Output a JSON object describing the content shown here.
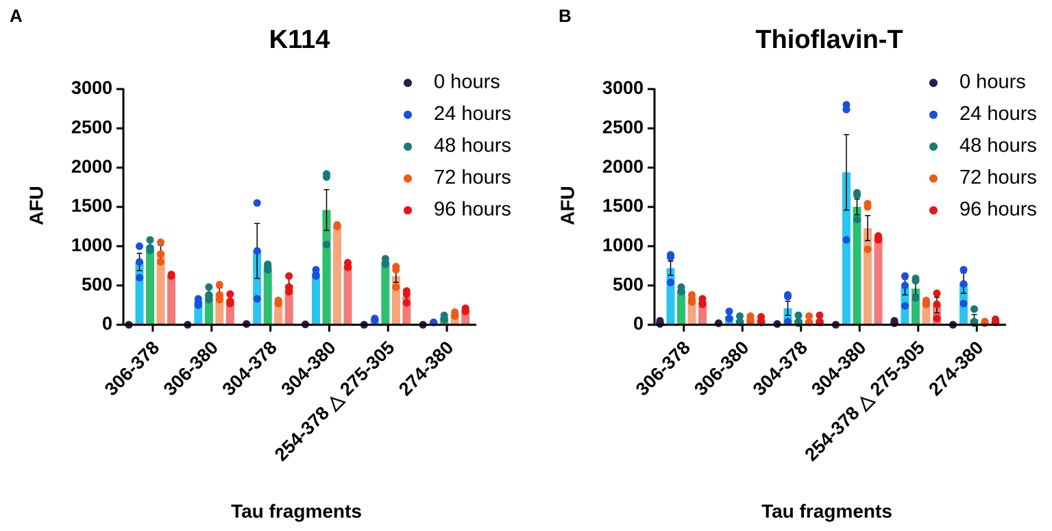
{
  "chart_data": [
    {
      "type": "bar",
      "panel_label": "A",
      "title": "K114",
      "xlabel": "Tau  fragments",
      "ylabel": "AFU",
      "categories": [
        "306-378",
        "306-380",
        "304-378",
        "304-380",
        "254-378 △ 275-305",
        "274-380"
      ],
      "ylim": [
        0,
        3000
      ],
      "yticks": [
        0,
        500,
        1000,
        1500,
        2000,
        2500,
        3000
      ],
      "series": [
        {
          "name": "0 hours",
          "color": "#2d1a4f",
          "bar_color": "#2d1a4f",
          "values": [
            0,
            0,
            10,
            5,
            0,
            0
          ],
          "errors": [
            0,
            0,
            0,
            0,
            0,
            0
          ],
          "points": [
            [
              0,
              0,
              0
            ],
            [
              0,
              0,
              0
            ],
            [
              10,
              10,
              10
            ],
            [
              5,
              5,
              5
            ],
            [
              0,
              0,
              0
            ],
            [
              0,
              0,
              0
            ]
          ]
        },
        {
          "name": "24 hours",
          "color": "#1a4fe0",
          "bar_color": "#29c5f0",
          "values": [
            800,
            290,
            940,
            650,
            70,
            30
          ],
          "errors": [
            110,
            40,
            350,
            30,
            10,
            5
          ],
          "points": [
            [
              1000,
              600,
              800
            ],
            [
              330,
              250,
              290
            ],
            [
              1550,
              330,
              940
            ],
            [
              700,
              620,
              640
            ],
            [
              80,
              70,
              60
            ],
            [
              30,
              30,
              30
            ]
          ]
        },
        {
          "name": "48 hours",
          "color": "#1a7a7a",
          "bar_color": "#2bbf6f",
          "values": [
            1000,
            390,
            740,
            1460,
            800,
            90
          ],
          "errors": [
            70,
            60,
            30,
            260,
            40,
            20
          ],
          "points": [
            [
              1080,
              980,
              950
            ],
            [
              480,
              320,
              380
            ],
            [
              770,
              700,
              750
            ],
            [
              1920,
              1880,
              1020
            ],
            [
              840,
              770,
              790
            ],
            [
              120,
              80,
              70
            ]
          ]
        },
        {
          "name": "72 hours",
          "color": "#f05a14",
          "bar_color": "#f5a67a",
          "values": [
            920,
            400,
            290,
            1260,
            620,
            130
          ],
          "errors": [
            90,
            70,
            20,
            10,
            80,
            20
          ],
          "points": [
            [
              1050,
              800,
              900
            ],
            [
              510,
              320,
              380
            ],
            [
              310,
              270,
              290
            ],
            [
              1270,
              1250,
              1260
            ],
            [
              740,
              700,
              480
            ],
            [
              160,
              120,
              110
            ]
          ]
        },
        {
          "name": "96 hours",
          "color": "#e81414",
          "bar_color": "#f27a7a",
          "values": [
            630,
            320,
            510,
            750,
            360,
            190
          ],
          "errors": [
            20,
            50,
            90,
            30,
            60,
            20
          ],
          "points": [
            [
              640,
              620,
              630
            ],
            [
              390,
              270,
              300
            ],
            [
              620,
              480,
              420
            ],
            [
              790,
              730,
              740
            ],
            [
              430,
              390,
              280
            ],
            [
              210,
              180,
              170
            ]
          ]
        }
      ]
    },
    {
      "type": "bar",
      "panel_label": "B",
      "title": "Thioflavin-T",
      "xlabel": "Tau fragments",
      "ylabel": "AFU",
      "categories": [
        "306-378",
        "306-380",
        "304-378",
        "304-380",
        "254-378 △ 275-305",
        "274-380"
      ],
      "ylim": [
        0,
        3000
      ],
      "yticks": [
        0,
        500,
        1000,
        1500,
        2000,
        2500,
        3000
      ],
      "series": [
        {
          "name": "0 hours",
          "color": "#2d1a4f",
          "bar_color": "#2d1a4f",
          "values": [
            30,
            20,
            10,
            0,
            30,
            0
          ],
          "errors": [
            20,
            0,
            0,
            0,
            20,
            0
          ],
          "points": [
            [
              50,
              10,
              30
            ],
            [
              20,
              20,
              20
            ],
            [
              10,
              10,
              10
            ],
            [
              0,
              0,
              0
            ],
            [
              50,
              20,
              20
            ],
            [
              0,
              0,
              0
            ]
          ]
        },
        {
          "name": "24 hours",
          "color": "#1a4fe0",
          "bar_color": "#29c5f0",
          "values": [
            720,
            110,
            210,
            1940,
            480,
            530
          ],
          "errors": [
            90,
            40,
            90,
            480,
            100,
            130
          ],
          "points": [
            [
              890,
              860,
              540
            ],
            [
              170,
              80,
              80
            ],
            [
              380,
              360,
              40
            ],
            [
              2800,
              2740,
              1080
            ],
            [
              620,
              500,
              240
            ],
            [
              700,
              520,
              270
            ]
          ]
        },
        {
          "name": "48 hours",
          "color": "#1a7a7a",
          "bar_color": "#2bbf6f",
          "values": [
            440,
            60,
            60,
            1500,
            460,
            70
          ],
          "errors": [
            20,
            30,
            40,
            100,
            80,
            60
          ],
          "points": [
            [
              480,
              430,
              420
            ],
            [
              110,
              40,
              30
            ],
            [
              120,
              40,
              20
            ],
            [
              1680,
              1650,
              1340
            ],
            [
              590,
              560,
              340
            ],
            [
              200,
              40,
              20
            ]
          ]
        },
        {
          "name": "72 hours",
          "color": "#f05a14",
          "bar_color": "#f5a67a",
          "values": [
            330,
            70,
            60,
            1230,
            280,
            30
          ],
          "errors": [
            40,
            30,
            30,
            160,
            20,
            10
          ],
          "points": [
            [
              380,
              330,
              290
            ],
            [
              110,
              60,
              40
            ],
            [
              110,
              30,
              30
            ],
            [
              1540,
              1500,
              960
            ],
            [
              310,
              280,
              260
            ],
            [
              40,
              30,
              20
            ]
          ]
        },
        {
          "name": "96 hours",
          "color": "#e81414",
          "bar_color": "#f27a7a",
          "values": [
            290,
            60,
            60,
            1100,
            250,
            50
          ],
          "errors": [
            30,
            30,
            40,
            20,
            100,
            20
          ],
          "points": [
            [
              330,
              280,
              260
            ],
            [
              100,
              50,
              30
            ],
            [
              120,
              40,
              30
            ],
            [
              1130,
              1100,
              1080
            ],
            [
              400,
              260,
              80
            ],
            [
              70,
              40,
              30
            ]
          ]
        }
      ]
    }
  ]
}
